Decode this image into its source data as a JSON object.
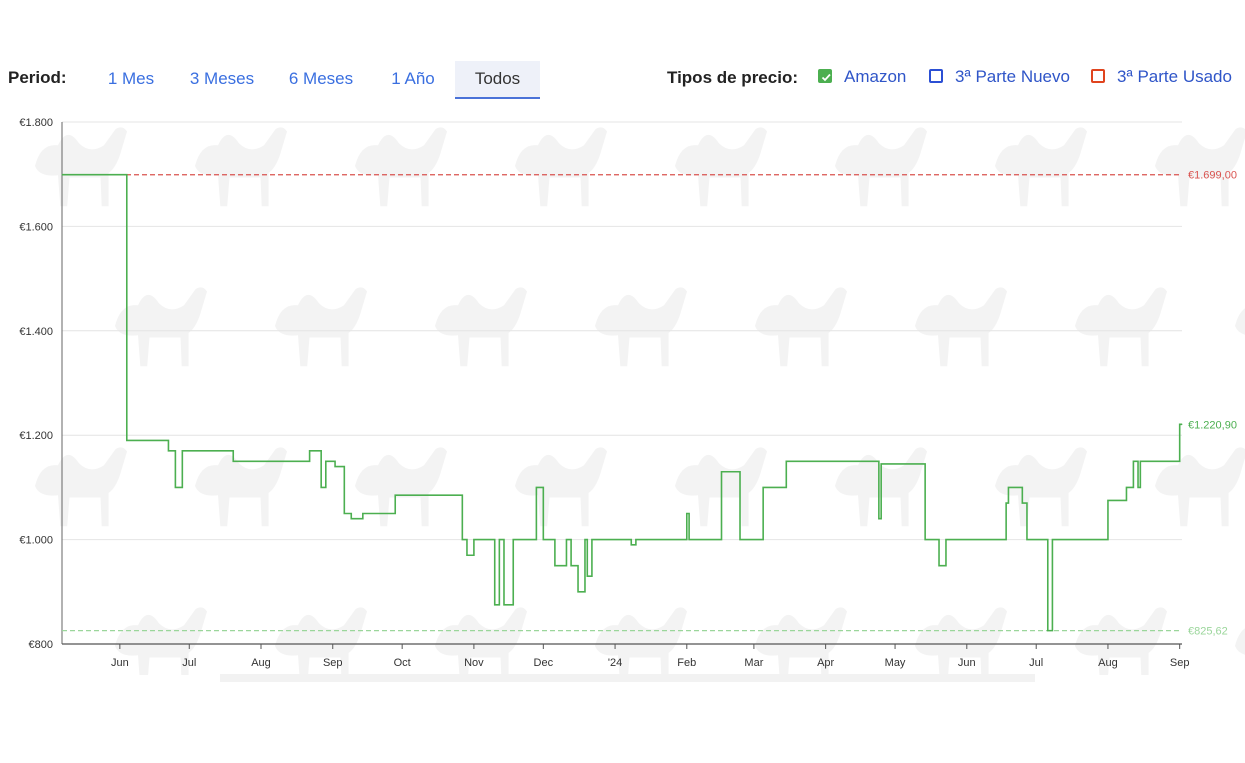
{
  "toolbar": {
    "period_label": "Period:",
    "ranges": [
      "1 Mes",
      "3 Meses",
      "6 Meses",
      "1 Año",
      "Todos"
    ],
    "active_range": "Todos",
    "types_label": "Tipos de precio:",
    "types": [
      {
        "label": "Amazon",
        "checked": true,
        "color": "#4caf50"
      },
      {
        "label": "3ª Parte Nuevo",
        "checked": false,
        "color": "#2b4fd4"
      },
      {
        "label": "3ª Parte Usado",
        "checked": false,
        "color": "#e0441e"
      }
    ]
  },
  "chart_data": {
    "type": "line",
    "title": "",
    "xlabel": "",
    "ylabel": "",
    "y_ticks": [
      "€800",
      "€1.000",
      "€1.200",
      "€1.400",
      "€1.600",
      "€1.800"
    ],
    "ylim": [
      800,
      1800
    ],
    "x_ticks": [
      "Jun",
      "Jul",
      "Aug",
      "Sep",
      "Oct",
      "Nov",
      "Dec",
      "'24",
      "Feb",
      "Mar",
      "Apr",
      "May",
      "Jun",
      "Jul",
      "Aug",
      "Sep"
    ],
    "x_tick_dates": [
      "2023-06-01",
      "2023-07-01",
      "2023-08-01",
      "2023-09-01",
      "2023-10-01",
      "2023-11-01",
      "2023-12-01",
      "2024-01-01",
      "2024-02-01",
      "2024-03-01",
      "2024-04-01",
      "2024-05-01",
      "2024-06-01",
      "2024-07-01",
      "2024-08-01",
      "2024-09-01"
    ],
    "xlim": [
      "2023-05-07",
      "2024-09-02"
    ],
    "grid": true,
    "step": true,
    "series": [
      {
        "name": "Amazon",
        "color": "#4caf50",
        "points": [
          [
            "2023-05-07",
            1699
          ],
          [
            "2023-06-04",
            1190
          ],
          [
            "2023-06-22",
            1170
          ],
          [
            "2023-06-25",
            1100
          ],
          [
            "2023-06-28",
            1170
          ],
          [
            "2023-07-20",
            1150
          ],
          [
            "2023-08-22",
            1170
          ],
          [
            "2023-08-27",
            1100
          ],
          [
            "2023-08-29",
            1150
          ],
          [
            "2023-09-02",
            1140
          ],
          [
            "2023-09-06",
            1050
          ],
          [
            "2023-09-09",
            1040
          ],
          [
            "2023-09-14",
            1050
          ],
          [
            "2023-09-28",
            1085
          ],
          [
            "2023-10-27",
            1000
          ],
          [
            "2023-10-29",
            970
          ],
          [
            "2023-11-01",
            1000
          ],
          [
            "2023-11-10",
            875
          ],
          [
            "2023-11-12",
            1000
          ],
          [
            "2023-11-14",
            875
          ],
          [
            "2023-11-18",
            1000
          ],
          [
            "2023-11-28",
            1100
          ],
          [
            "2023-12-01",
            1000
          ],
          [
            "2023-12-06",
            950
          ],
          [
            "2023-12-11",
            1000
          ],
          [
            "2023-12-13",
            950
          ],
          [
            "2023-12-16",
            900
          ],
          [
            "2023-12-19",
            1000
          ],
          [
            "2023-12-20",
            930
          ],
          [
            "2023-12-22",
            1000
          ],
          [
            "2024-01-08",
            990
          ],
          [
            "2024-01-10",
            1000
          ],
          [
            "2024-02-01",
            1050
          ],
          [
            "2024-02-02",
            1000
          ],
          [
            "2024-02-16",
            1130
          ],
          [
            "2024-02-24",
            1000
          ],
          [
            "2024-03-05",
            1100
          ],
          [
            "2024-03-15",
            1150
          ],
          [
            "2024-04-24",
            1040
          ],
          [
            "2024-04-25",
            1145
          ],
          [
            "2024-05-14",
            1000
          ],
          [
            "2024-05-20",
            950
          ],
          [
            "2024-05-23",
            1000
          ],
          [
            "2024-06-18",
            1070
          ],
          [
            "2024-06-19",
            1100
          ],
          [
            "2024-06-25",
            1070
          ],
          [
            "2024-06-27",
            1000
          ],
          [
            "2024-07-06",
            825.62
          ],
          [
            "2024-07-08",
            1000
          ],
          [
            "2024-08-01",
            1075
          ],
          [
            "2024-08-09",
            1100
          ],
          [
            "2024-08-12",
            1150
          ],
          [
            "2024-08-14",
            1100
          ],
          [
            "2024-08-15",
            1150
          ],
          [
            "2024-09-01",
            1220.9
          ],
          [
            "2024-09-02",
            1220.9
          ]
        ]
      }
    ],
    "reference_lines": [
      {
        "value": 1699,
        "label": "€1.699,00",
        "color": "#d9534f",
        "style": "dashed"
      },
      {
        "value": 825.62,
        "label": "€825,62",
        "color": "#9bd69b",
        "style": "dashed"
      }
    ],
    "current_label": {
      "value": 1220.9,
      "label": "€1.220,90",
      "color": "#4caf50"
    }
  }
}
